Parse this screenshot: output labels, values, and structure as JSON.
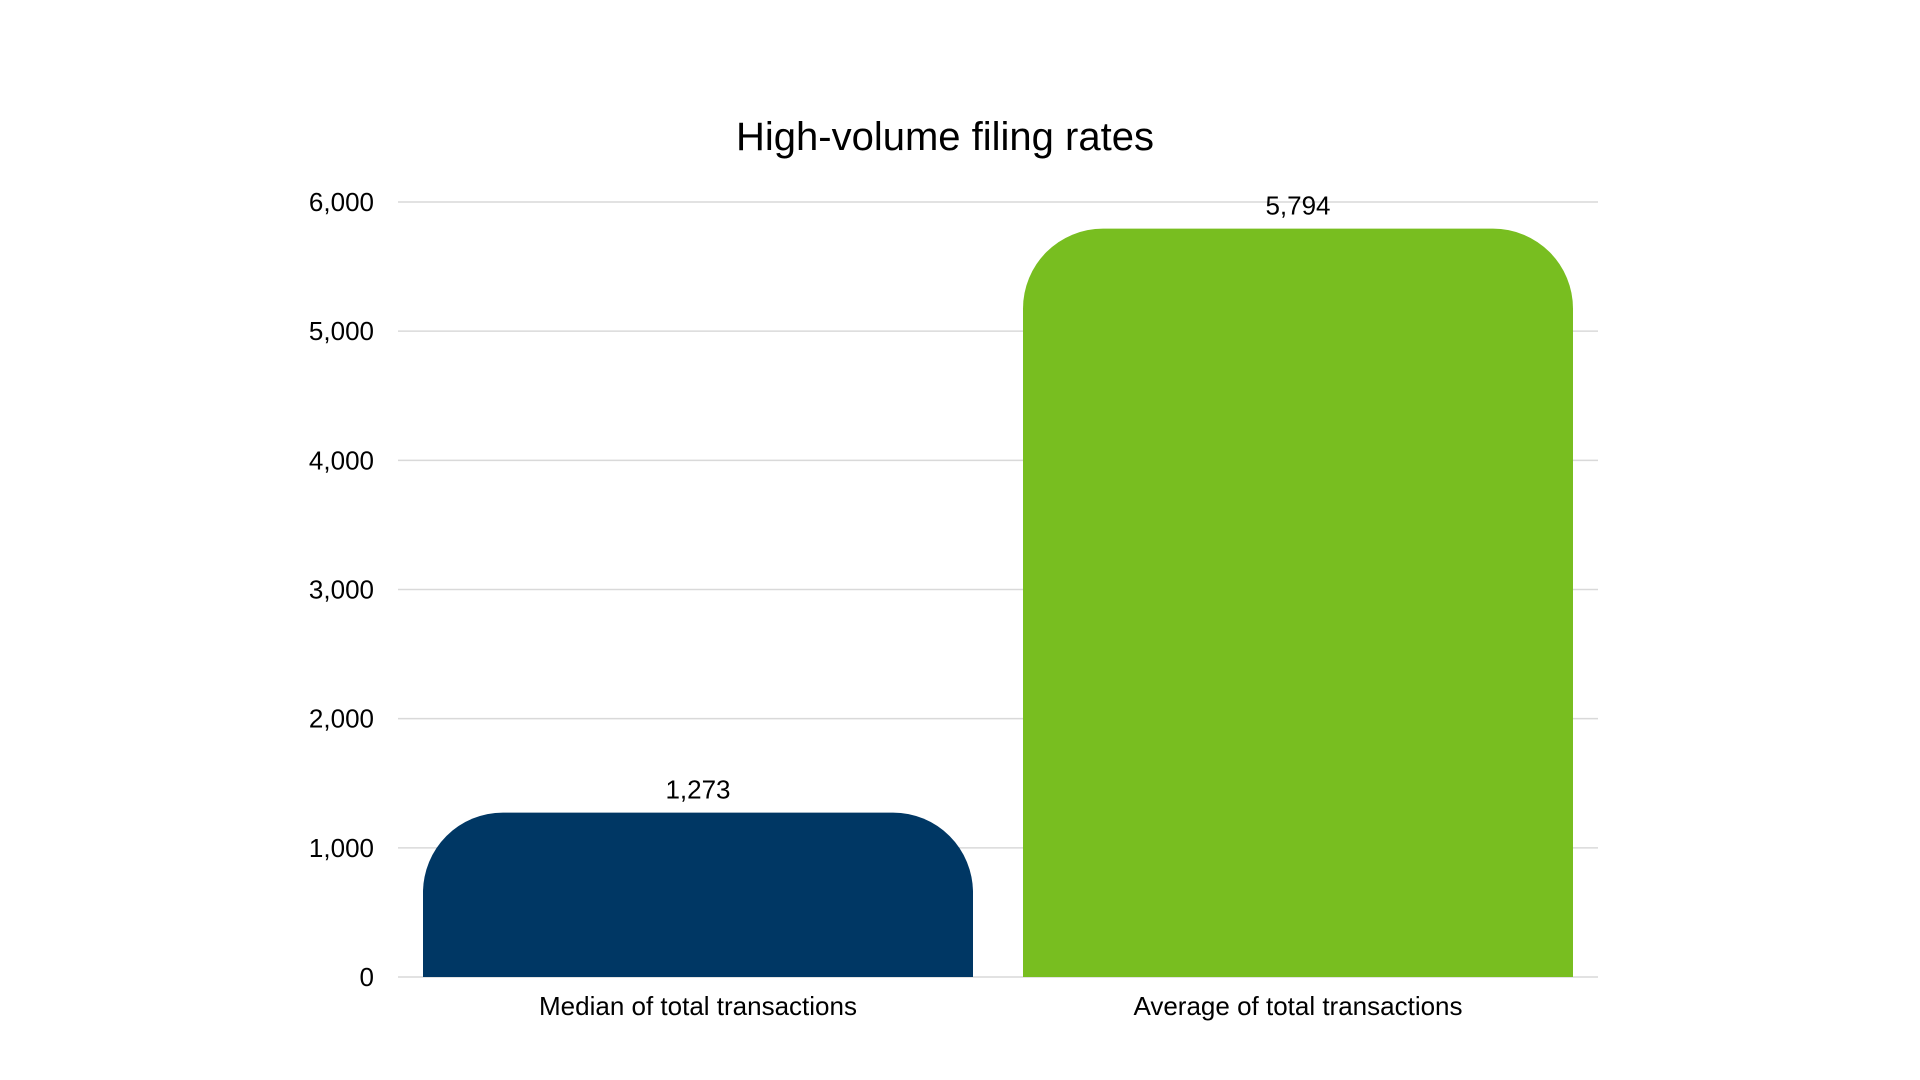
{
  "chart_data": {
    "type": "bar",
    "title": "High-volume filing rates",
    "xlabel": "",
    "ylabel": "",
    "categories": [
      "Median of total transactions",
      "Average of total transactions"
    ],
    "values": [
      1273,
      5794
    ],
    "value_labels": [
      "1,273",
      "5,794"
    ],
    "bar_colors": [
      "#003764",
      "#78BE20"
    ],
    "ylim": [
      0,
      6000
    ],
    "yticks": [
      0,
      1000,
      2000,
      3000,
      4000,
      5000,
      6000
    ],
    "ytick_labels": [
      "0",
      "1,000",
      "2,000",
      "3,000",
      "4,000",
      "5,000",
      "6,000"
    ],
    "grid": true,
    "legend": "none"
  }
}
